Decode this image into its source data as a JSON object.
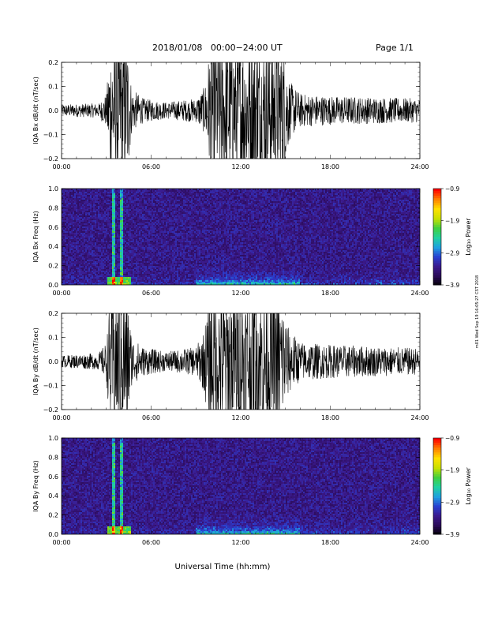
{
  "header": {
    "date_range": "2018/01/08   00:00−24:00 UT",
    "page": "Page 1/1"
  },
  "side_stamp": "m01 Wed Sep 19 16:05:27 CST 2018",
  "colors": {
    "trace": "#000000",
    "colormap": [
      "#000000",
      "#2a0a55",
      "#3b1a8c",
      "#2a3fd0",
      "#1fa0e0",
      "#20d0a0",
      "#40d040",
      "#c8e000",
      "#ffe000",
      "#ff8000",
      "#ff0000"
    ]
  },
  "chart_data": [
    {
      "type": "line",
      "ylabel": "IQA Bx dB/dt (nT/sec)",
      "ylim": [
        -0.2,
        0.2
      ],
      "yticks": [
        "−0.2",
        "−0.1",
        "0.0",
        "0.1",
        "0.2"
      ],
      "xlim_hours": [
        0,
        24
      ],
      "xticks": [
        "00:00",
        "06:00",
        "12:00",
        "18:00",
        "24:00"
      ],
      "envelope_amplitude_by_hour": [
        [
          0,
          0.025
        ],
        [
          2.5,
          0.03
        ],
        [
          3.0,
          0.07
        ],
        [
          3.3,
          0.3
        ],
        [
          4.4,
          0.3
        ],
        [
          4.7,
          0.09
        ],
        [
          5.5,
          0.05
        ],
        [
          7.0,
          0.035
        ],
        [
          9.0,
          0.05
        ],
        [
          9.6,
          0.1
        ],
        [
          10.0,
          0.3
        ],
        [
          14.8,
          0.3
        ],
        [
          15.3,
          0.12
        ],
        [
          16.0,
          0.07
        ],
        [
          18.0,
          0.06
        ],
        [
          24,
          0.05
        ]
      ]
    },
    {
      "type": "heatmap",
      "ylabel": "IQA Bx Freq (Hz)",
      "ylim": [
        0,
        1.0
      ],
      "yticks": [
        "0.0",
        "0.2",
        "0.4",
        "0.6",
        "0.8",
        "1.0"
      ],
      "xlim_hours": [
        0,
        24
      ],
      "xticks": [
        "00:00",
        "06:00",
        "12:00",
        "18:00",
        "24:00"
      ],
      "colorbar": {
        "label": "Log₁₀ Power",
        "range": [
          -3.9,
          -0.9
        ],
        "ticks": [
          "−0.9",
          "−1.9",
          "−2.9",
          "−3.9"
        ]
      }
    },
    {
      "type": "line",
      "ylabel": "IQA By dB/dt (nT/sec)",
      "ylim": [
        -0.2,
        0.2
      ],
      "yticks": [
        "−0.2",
        "−0.1",
        "0.0",
        "0.1",
        "0.2"
      ],
      "xlim_hours": [
        0,
        24
      ],
      "xticks": [
        "00:00",
        "06:00",
        "12:00",
        "18:00",
        "24:00"
      ],
      "envelope_amplitude_by_hour": [
        [
          0,
          0.025
        ],
        [
          2.5,
          0.035
        ],
        [
          3.0,
          0.08
        ],
        [
          3.3,
          0.3
        ],
        [
          4.4,
          0.3
        ],
        [
          4.7,
          0.1
        ],
        [
          5.5,
          0.06
        ],
        [
          7.0,
          0.04
        ],
        [
          9.0,
          0.06
        ],
        [
          9.5,
          0.12
        ],
        [
          10.0,
          0.3
        ],
        [
          14.6,
          0.3
        ],
        [
          15.2,
          0.14
        ],
        [
          16.0,
          0.08
        ],
        [
          18.0,
          0.07
        ],
        [
          24,
          0.055
        ]
      ]
    },
    {
      "type": "heatmap",
      "ylabel": "IQA By Freq (Hz)",
      "ylim": [
        0,
        1.0
      ],
      "yticks": [
        "0.0",
        "0.2",
        "0.4",
        "0.6",
        "0.8",
        "1.0"
      ],
      "xlim_hours": [
        0,
        24
      ],
      "xticks": [
        "00:00",
        "06:00",
        "12:00",
        "18:00",
        "24:00"
      ],
      "colorbar": {
        "label": "Log₁₀ Power",
        "range": [
          -3.9,
          -0.9
        ],
        "ticks": [
          "−0.9",
          "−1.9",
          "−2.9",
          "−3.9"
        ]
      }
    }
  ],
  "xlabel": "Universal Time (hh:mm)"
}
